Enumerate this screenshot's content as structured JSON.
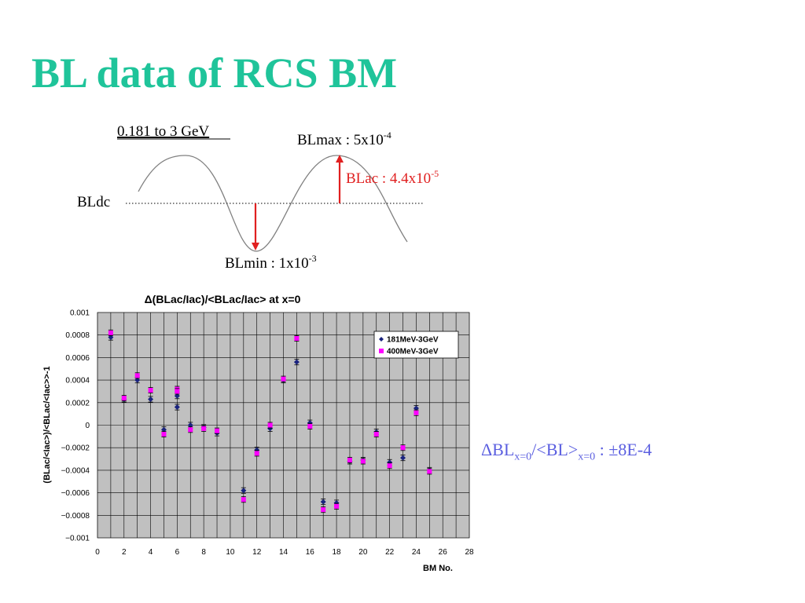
{
  "slide": {
    "title": "BL data of RCS BM"
  },
  "diagram": {
    "energy_label": "0.181 to 3 GeV",
    "blmax_label": "BLmax : 5x10",
    "blmax_exp": "-4",
    "blac_label": "BLac : 4.4x10",
    "blac_exp": "-5",
    "bldc_label": "BLdc",
    "blmin_label": "BLmin : 1x10",
    "blmin_exp": "-3",
    "colors": {
      "arrow": "#e02020",
      "blac_text": "#e02020",
      "wave": "#808080"
    }
  },
  "summary": {
    "prefix": "ΔBL",
    "sub1": "x=0",
    "middle": "/<BL>",
    "sub2": "x=0",
    "suffix": " :  ±8E-4"
  },
  "chart_data": {
    "type": "scatter",
    "title": "Δ(BLac/Iac)/<BLac/Iac> at x=0",
    "xlabel": "BM No.",
    "ylabel": "(BLac/<Iac>)/<BLac/<Iac>>-1",
    "xlim": [
      0,
      28
    ],
    "ylim": [
      -0.001,
      0.001
    ],
    "xticks": [
      "0",
      "2",
      "4",
      "6",
      "8",
      "10",
      "12",
      "14",
      "16",
      "18",
      "20",
      "22",
      "24",
      "26",
      "28"
    ],
    "yticks": [
      "0.001",
      "0.0008",
      "0.0006",
      "0.0004",
      "0.0002",
      "0",
      "-0.0002",
      "-0.0004",
      "-0.0006",
      "-0.0008",
      "-0.001"
    ],
    "grid": true,
    "background": "#c0c0c0",
    "legend_position": "top-right",
    "series": [
      {
        "name": "181MeV-3GeV",
        "marker": "diamond",
        "color": "#1a237e",
        "x": [
          1,
          2,
          3,
          4,
          5,
          6,
          6,
          7,
          8,
          9,
          11,
          12,
          13,
          14,
          15,
          16,
          17,
          18,
          19,
          20,
          21,
          22,
          23,
          24,
          25
        ],
        "y": [
          0.00078,
          0.00023,
          0.0004,
          0.00023,
          -4e-05,
          0.00016,
          0.00026,
          0.0,
          -2e-05,
          -7e-05,
          -0.00058,
          -0.00022,
          -3e-05,
          0.0004,
          0.00056,
          2e-05,
          -0.00068,
          -0.00069,
          -0.00032,
          -0.00031,
          -6e-05,
          -0.00033,
          -0.00029,
          0.00015,
          -0.0004
        ]
      },
      {
        "name": "400MeV-3GeV",
        "marker": "square",
        "color": "#ff00ff",
        "x": [
          1,
          2,
          3,
          4,
          5,
          6,
          6,
          7,
          8,
          9,
          11,
          12,
          13,
          14,
          15,
          16,
          17,
          18,
          19,
          20,
          21,
          22,
          23,
          24,
          25
        ],
        "y": [
          0.00082,
          0.00024,
          0.00044,
          0.00031,
          -8e-05,
          0.00032,
          0.0003,
          -4e-05,
          -3e-05,
          -5e-05,
          -0.00066,
          -0.00025,
          0.0,
          0.00041,
          0.00077,
          -1e-05,
          -0.00075,
          -0.00072,
          -0.00031,
          -0.00032,
          -8e-05,
          -0.00036,
          -0.0002,
          0.00011,
          -0.00041
        ]
      }
    ]
  }
}
